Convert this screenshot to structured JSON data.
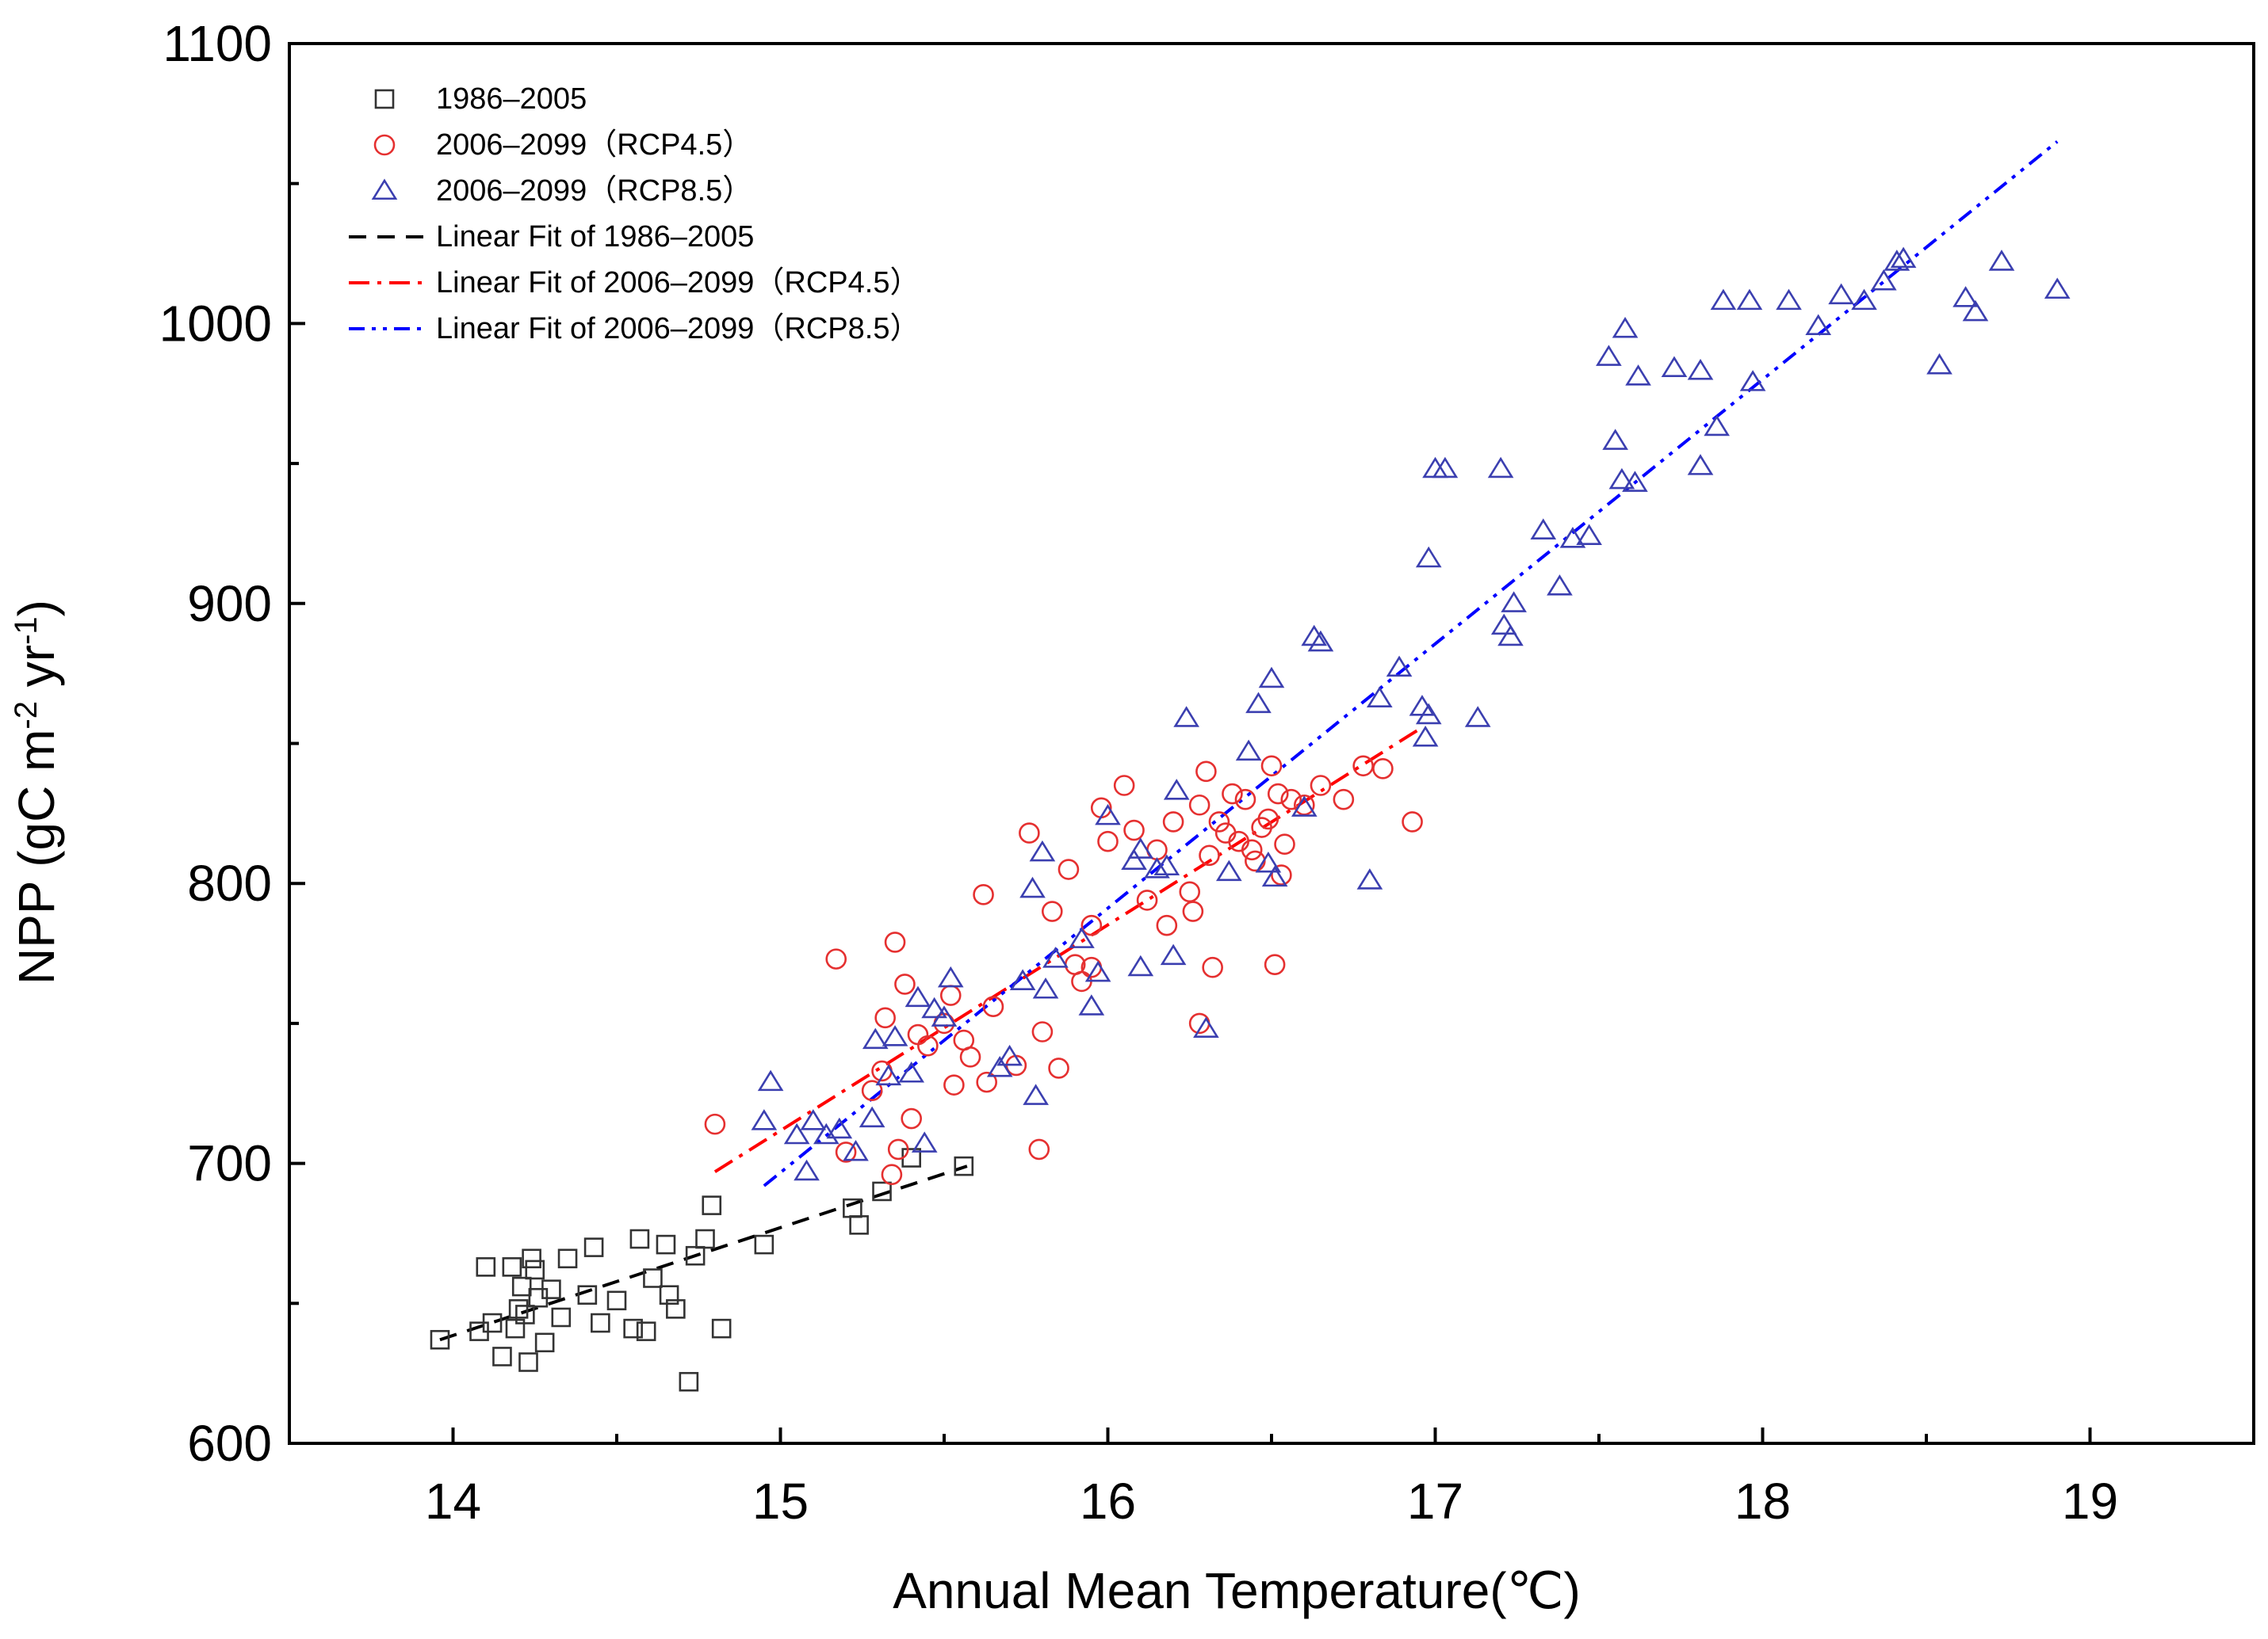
{
  "chart_data": {
    "type": "scatter",
    "title": "",
    "xlabel": "Annual Mean Temperature(℃)",
    "ylabel": {
      "prefix": "NPP (gC m",
      "sup1": "-2",
      "mid": " yr",
      "sup2": "-1",
      "suffix": ")"
    },
    "xlim": [
      13.5,
      19.5
    ],
    "ylim": [
      600,
      1100
    ],
    "xticks": [
      14,
      15,
      16,
      17,
      18,
      19
    ],
    "xtick_labels": [
      "14",
      "15",
      "16",
      "17",
      "18",
      "19"
    ],
    "yticks": [
      600,
      700,
      800,
      900,
      1000,
      1100
    ],
    "ytick_labels": [
      "600",
      "700",
      "800",
      "900",
      "1000",
      "1100"
    ],
    "x_minor_step": 0.5,
    "y_minor_step": 50,
    "grid": false,
    "legend_position": "top-left",
    "series": [
      {
        "name": "1986–2005",
        "marker": "square",
        "color": "#333333",
        "points": [
          [
            13.96,
            637
          ],
          [
            14.08,
            640
          ],
          [
            14.1,
            663
          ],
          [
            14.12,
            643
          ],
          [
            14.15,
            631
          ],
          [
            14.18,
            663
          ],
          [
            14.19,
            641
          ],
          [
            14.2,
            648
          ],
          [
            14.21,
            656
          ],
          [
            14.22,
            646
          ],
          [
            14.23,
            629
          ],
          [
            14.24,
            666
          ],
          [
            14.25,
            662
          ],
          [
            14.26,
            652
          ],
          [
            14.28,
            636
          ],
          [
            14.3,
            655
          ],
          [
            14.33,
            645
          ],
          [
            14.35,
            666
          ],
          [
            14.41,
            653
          ],
          [
            14.43,
            670
          ],
          [
            14.45,
            643
          ],
          [
            14.5,
            651
          ],
          [
            14.55,
            641
          ],
          [
            14.57,
            673
          ],
          [
            14.59,
            640
          ],
          [
            14.61,
            659
          ],
          [
            14.65,
            671
          ],
          [
            14.66,
            653
          ],
          [
            14.68,
            648
          ],
          [
            14.72,
            622
          ],
          [
            14.74,
            667
          ],
          [
            14.77,
            673
          ],
          [
            14.79,
            685
          ],
          [
            14.82,
            641
          ],
          [
            14.95,
            671
          ],
          [
            15.22,
            684
          ],
          [
            15.24,
            678
          ],
          [
            15.31,
            690
          ],
          [
            15.4,
            702
          ],
          [
            15.56,
            699
          ]
        ]
      },
      {
        "name": "2006–2099（RCP4.5）",
        "marker": "circle",
        "color": "#e53030",
        "points": [
          [
            14.8,
            714
          ],
          [
            15.17,
            773
          ],
          [
            15.28,
            726
          ],
          [
            15.31,
            733
          ],
          [
            15.32,
            752
          ],
          [
            15.34,
            696
          ],
          [
            15.35,
            779
          ],
          [
            15.38,
            764
          ],
          [
            15.4,
            716
          ],
          [
            15.42,
            746
          ],
          [
            15.45,
            742
          ],
          [
            15.5,
            750
          ],
          [
            15.53,
            728
          ],
          [
            15.56,
            744
          ],
          [
            15.58,
            738
          ],
          [
            15.62,
            796
          ],
          [
            15.63,
            729
          ],
          [
            15.65,
            756
          ],
          [
            15.72,
            735
          ],
          [
            15.76,
            818
          ],
          [
            15.79,
            705
          ],
          [
            15.8,
            747
          ],
          [
            15.83,
            790
          ],
          [
            15.85,
            734
          ],
          [
            15.88,
            805
          ],
          [
            15.9,
            771
          ],
          [
            15.92,
            765
          ],
          [
            15.95,
            785
          ],
          [
            15.98,
            827
          ],
          [
            16.0,
            815
          ],
          [
            16.05,
            835
          ],
          [
            16.08,
            819
          ],
          [
            16.12,
            794
          ],
          [
            16.15,
            812
          ],
          [
            16.18,
            785
          ],
          [
            16.2,
            822
          ],
          [
            16.25,
            797
          ],
          [
            16.26,
            790
          ],
          [
            16.28,
            828
          ],
          [
            16.3,
            840
          ],
          [
            16.31,
            810
          ],
          [
            16.32,
            770
          ],
          [
            16.34,
            822
          ],
          [
            16.36,
            818
          ],
          [
            16.38,
            832
          ],
          [
            16.4,
            815
          ],
          [
            16.42,
            830
          ],
          [
            16.45,
            808
          ],
          [
            16.47,
            820
          ],
          [
            16.49,
            823
          ],
          [
            16.5,
            842
          ],
          [
            16.51,
            771
          ],
          [
            16.52,
            832
          ],
          [
            16.53,
            803
          ],
          [
            16.54,
            814
          ],
          [
            16.56,
            830
          ],
          [
            16.6,
            828
          ],
          [
            16.65,
            835
          ],
          [
            16.72,
            830
          ],
          [
            16.78,
            842
          ],
          [
            16.84,
            841
          ],
          [
            16.93,
            822
          ],
          [
            16.28,
            750
          ],
          [
            15.2,
            704
          ],
          [
            15.36,
            705
          ],
          [
            15.52,
            760
          ],
          [
            15.95,
            770
          ],
          [
            16.44,
            812
          ]
        ]
      },
      {
        "name": "2006–2099（RCP8.5）",
        "marker": "triangle",
        "color": "#3b3fb0",
        "points": [
          [
            14.95,
            715
          ],
          [
            14.97,
            729
          ],
          [
            15.05,
            710
          ],
          [
            15.08,
            697
          ],
          [
            15.1,
            715
          ],
          [
            15.14,
            710
          ],
          [
            15.18,
            712
          ],
          [
            15.23,
            704
          ],
          [
            15.28,
            716
          ],
          [
            15.29,
            744
          ],
          [
            15.33,
            731
          ],
          [
            15.35,
            745
          ],
          [
            15.4,
            732
          ],
          [
            15.42,
            759
          ],
          [
            15.44,
            707
          ],
          [
            15.47,
            755
          ],
          [
            15.5,
            752
          ],
          [
            15.52,
            766
          ],
          [
            15.67,
            734
          ],
          [
            15.7,
            738
          ],
          [
            15.74,
            765
          ],
          [
            15.77,
            798
          ],
          [
            15.78,
            724
          ],
          [
            15.8,
            811
          ],
          [
            15.81,
            762
          ],
          [
            15.84,
            773
          ],
          [
            15.92,
            780
          ],
          [
            15.95,
            756
          ],
          [
            15.97,
            768
          ],
          [
            16.0,
            824
          ],
          [
            16.08,
            808
          ],
          [
            16.1,
            812
          ],
          [
            16.1,
            770
          ],
          [
            16.15,
            805
          ],
          [
            16.18,
            806
          ],
          [
            16.2,
            774
          ],
          [
            16.21,
            833
          ],
          [
            16.24,
            859
          ],
          [
            16.3,
            748
          ],
          [
            16.37,
            804
          ],
          [
            16.43,
            847
          ],
          [
            16.46,
            864
          ],
          [
            16.49,
            807
          ],
          [
            16.5,
            873
          ],
          [
            16.51,
            802
          ],
          [
            16.6,
            827
          ],
          [
            16.63,
            888
          ],
          [
            16.65,
            886
          ],
          [
            16.8,
            801
          ],
          [
            16.83,
            866
          ],
          [
            16.89,
            877
          ],
          [
            16.96,
            863
          ],
          [
            16.97,
            852
          ],
          [
            16.98,
            860
          ],
          [
            16.98,
            916
          ],
          [
            17.0,
            948
          ],
          [
            17.03,
            948
          ],
          [
            17.13,
            859
          ],
          [
            17.2,
            948
          ],
          [
            17.21,
            892
          ],
          [
            17.23,
            888
          ],
          [
            17.24,
            900
          ],
          [
            17.33,
            926
          ],
          [
            17.38,
            906
          ],
          [
            17.42,
            923
          ],
          [
            17.47,
            924
          ],
          [
            17.53,
            988
          ],
          [
            17.55,
            958
          ],
          [
            17.57,
            944
          ],
          [
            17.58,
            998
          ],
          [
            17.61,
            943
          ],
          [
            17.62,
            981
          ],
          [
            17.73,
            984
          ],
          [
            17.81,
            949
          ],
          [
            17.81,
            983
          ],
          [
            17.86,
            963
          ],
          [
            17.88,
            1008
          ],
          [
            17.96,
            1008
          ],
          [
            17.97,
            979
          ],
          [
            18.08,
            1008
          ],
          [
            18.17,
            999
          ],
          [
            18.24,
            1010
          ],
          [
            18.31,
            1008
          ],
          [
            18.37,
            1015
          ],
          [
            18.41,
            1022
          ],
          [
            18.43,
            1023
          ],
          [
            18.54,
            985
          ],
          [
            18.62,
            1009
          ],
          [
            18.65,
            1004
          ],
          [
            18.73,
            1022
          ],
          [
            18.9,
            1012
          ]
        ]
      }
    ],
    "fits": [
      {
        "name": "Linear Fit of 1986–2005",
        "color": "#000000",
        "dash": "dashed",
        "x": [
          13.96,
          15.57
        ],
        "y": [
          637,
          699
        ]
      },
      {
        "name": "Linear Fit of 2006–2099（RCP4.5）",
        "color": "#ff0000",
        "dash": "dash-dot",
        "x": [
          14.8,
          16.95
        ],
        "y": [
          697,
          855
        ]
      },
      {
        "name": "Linear Fit of 2006–2099（RCP8.5）",
        "color": "#0000ff",
        "dash": "dash-dot-dot",
        "x": [
          14.95,
          18.9
        ],
        "y": [
          692,
          1065
        ]
      }
    ],
    "legend": [
      {
        "label": "1986–2005",
        "kind": "square",
        "color": "#333333"
      },
      {
        "label": "2006–2099（RCP4.5）",
        "kind": "circle",
        "color": "#e53030"
      },
      {
        "label": "2006–2099（RCP8.5）",
        "kind": "triangle",
        "color": "#3b3fb0"
      },
      {
        "label": "Linear Fit of 1986–2005",
        "kind": "dashed",
        "color": "#000000"
      },
      {
        "label": "Linear Fit of 2006–2099（RCP4.5）",
        "kind": "dash-dot",
        "color": "#ff0000"
      },
      {
        "label": "Linear Fit of 2006–2099（RCP8.5）",
        "kind": "dash-dot-dot",
        "color": "#0000ff"
      }
    ]
  }
}
